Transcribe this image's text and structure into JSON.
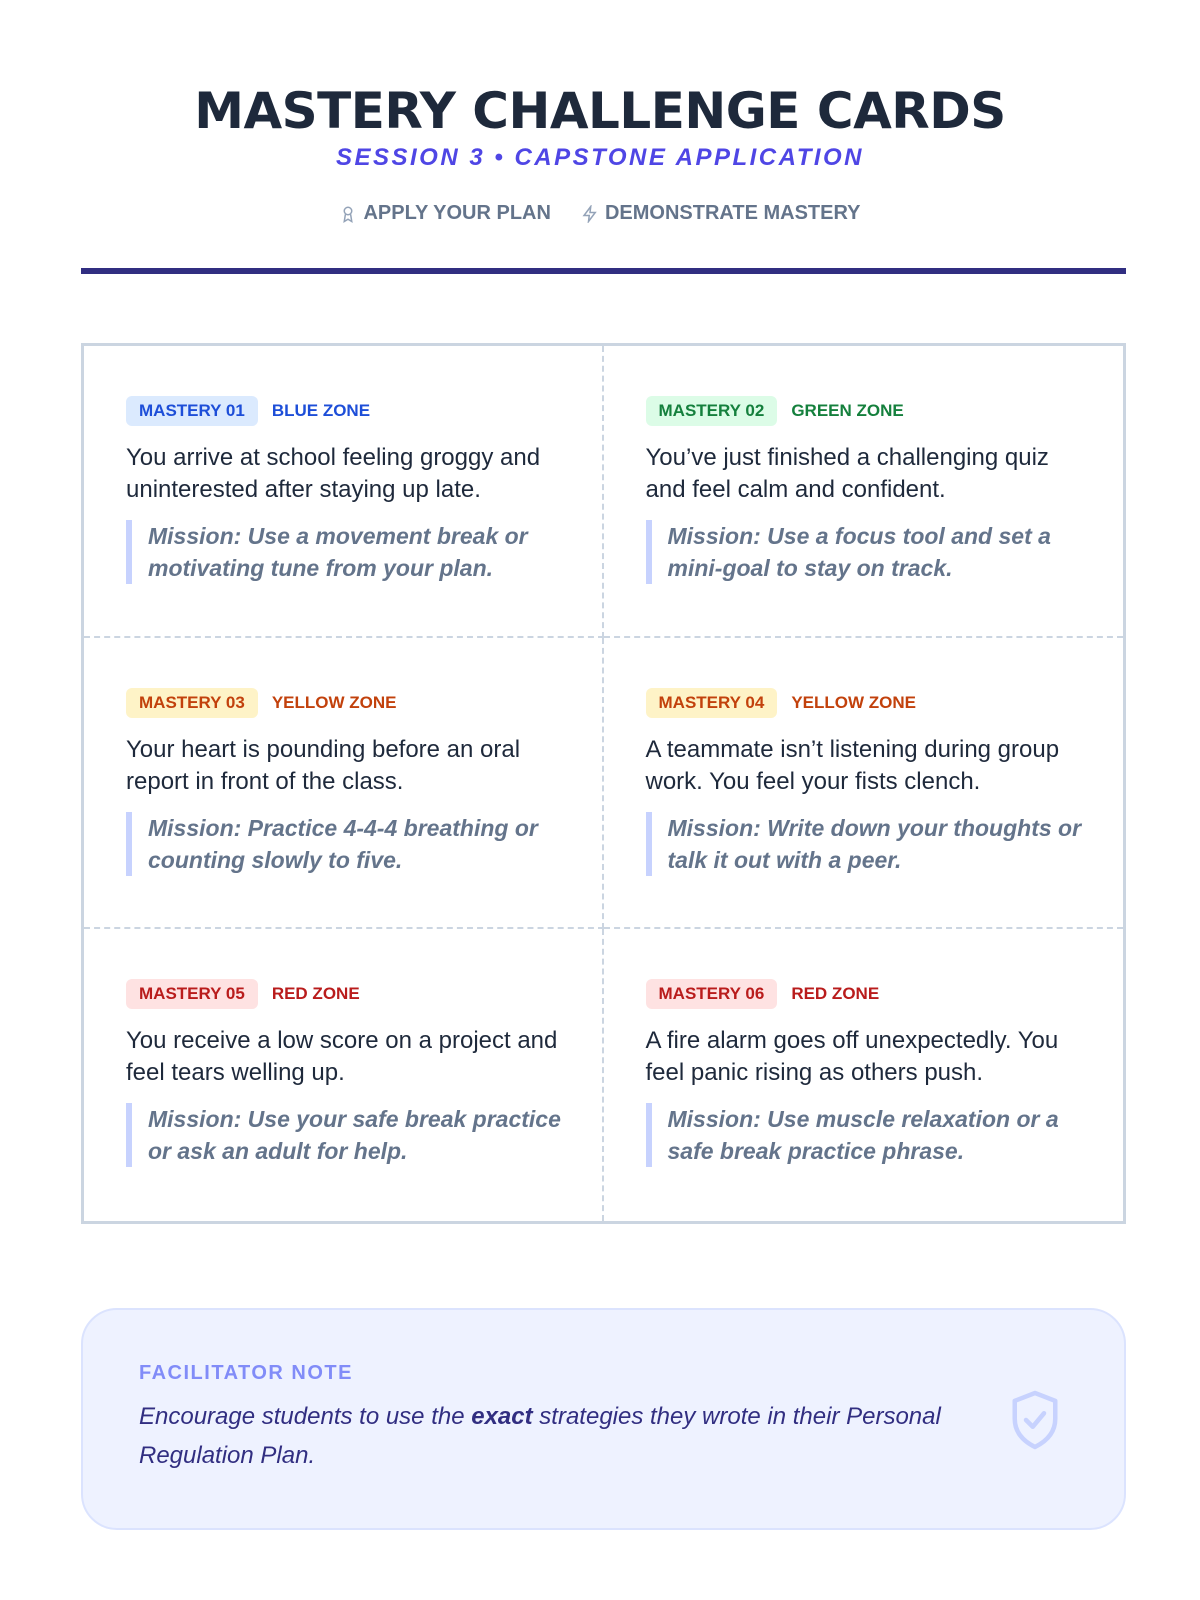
{
  "header": {
    "title": "MASTERY CHALLENGE CARDS",
    "subtitle": "SESSION 3 • CAPSTONE APPLICATION",
    "tags": [
      {
        "icon": "award-icon",
        "label": "APPLY YOUR PLAN"
      },
      {
        "icon": "lightning-icon",
        "label": "DEMONSTRATE MASTERY"
      }
    ]
  },
  "cards": [
    {
      "badge": "MASTERY 01",
      "zone": "BLUE ZONE",
      "color": "#1d4ed8",
      "bg": "#dbeafe",
      "scenario": "You arrive at school feeling groggy and uninterested after staying up late.",
      "mission": "Mission: Use a movement break or motivating tune from your plan."
    },
    {
      "badge": "MASTERY 02",
      "zone": "GREEN ZONE",
      "color": "#15803d",
      "bg": "#dcfce7",
      "scenario": "You’ve just finished a challenging quiz and feel calm and confident.",
      "mission": "Mission: Use a focus tool and set a mini-goal to stay on track."
    },
    {
      "badge": "MASTERY 03",
      "zone": "YELLOW ZONE",
      "color": "#c2410c",
      "bg": "#fef3c7",
      "scenario": "Your heart is pounding before an oral report in front of the class.",
      "mission": "Mission: Practice 4-4-4 breathing or counting slowly to five."
    },
    {
      "badge": "MASTERY 04",
      "zone": "YELLOW ZONE",
      "color": "#c2410c",
      "bg": "#fef3c7",
      "scenario": "A teammate isn’t listening during group work. You feel your fists clench.",
      "mission": "Mission: Write down your thoughts or talk it out with a peer."
    },
    {
      "badge": "MASTERY 05",
      "zone": "RED ZONE",
      "color": "#b91c1c",
      "bg": "#fee2e2",
      "scenario": "You receive a low score on a project and feel tears welling up.",
      "mission": "Mission: Use your safe break practice or ask an adult for help."
    },
    {
      "badge": "MASTERY 06",
      "zone": "RED ZONE",
      "color": "#b91c1c",
      "bg": "#fee2e2",
      "scenario": "A fire alarm goes off unexpectedly. You feel panic rising as others push.",
      "mission": "Mission: Use muscle relaxation or a safe break practice phrase."
    }
  ],
  "note": {
    "label": "FACILITATOR NOTE",
    "text_before": "Encourage students to use the ",
    "text_bold": "exact",
    "text_after": " strategies they wrote in their Personal Regulation Plan.",
    "icon": "shield-check-icon"
  }
}
